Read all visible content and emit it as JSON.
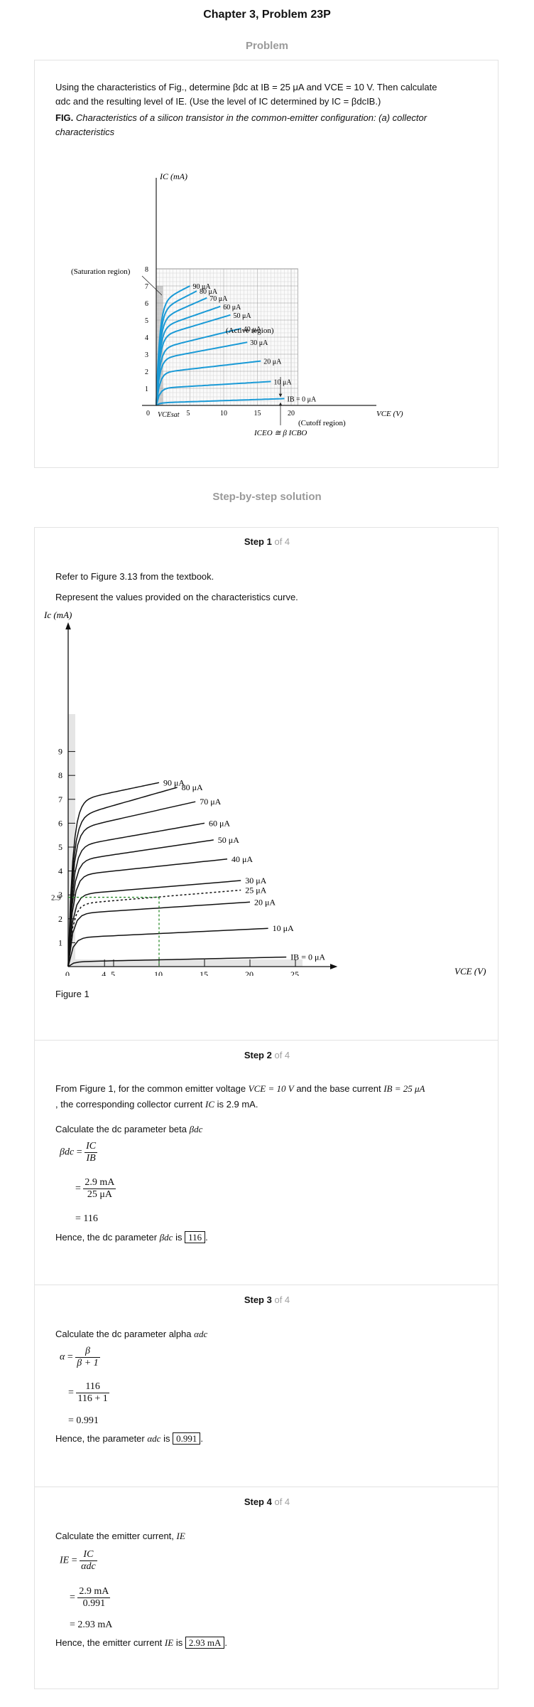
{
  "page": {
    "title": "Chapter 3, Problem 23P",
    "problem_label": "Problem",
    "solution_label": "Step-by-step solution"
  },
  "problem": {
    "text_line1": "Using the characteristics of Fig., determine βdc at IB = 25 μA and VCE = 10 V. Then calculate",
    "text_line2": "αdc and the resulting level of IE. (Use the level of IC determined by IC = βdcIB.)",
    "fig_label": "FIG.",
    "fig_caption_line1": "Characteristics of a silicon transistor in the common-emitter configuration: (a) collector",
    "fig_caption_line2": "characteristics"
  },
  "figure_a": {
    "y_axis_label": "IC (mA)",
    "x_axis_label": "VCE (V)",
    "y_ticks": [
      "1",
      "2",
      "3",
      "4",
      "5",
      "6",
      "7",
      "8"
    ],
    "x_ticks": [
      "0",
      "5",
      "10",
      "15",
      "20"
    ],
    "curve_labels": [
      "90 μA",
      "80 μA",
      "70 μA",
      "60 μA",
      "50 μA",
      "40 μA",
      "30 μA",
      "20 μA",
      "10 μA",
      "IB = 0 μA"
    ],
    "annotations": {
      "saturation": "(Saturation region)",
      "active": "(Active region)",
      "cutoff": "(Cutoff region)",
      "vce_sat": "VCEsat",
      "iceo": "ICEO ≅ β ICBO"
    },
    "curve_color": "#1a9ad6"
  },
  "steps": [
    {
      "label": "Step 1",
      "of": "of 4",
      "line1": "Refer to Figure 3.13 from the textbook.",
      "line2": "Represent the values provided on the characteristics curve.",
      "figure_caption": "Figure 1"
    },
    {
      "label": "Step 2",
      "of": "of 4",
      "text_a": "From Figure 1, for the common emitter voltage",
      "vce_eq": "VCE = 10 V",
      "text_b": "and the base current",
      "ib_eq": "IB = 25 μA",
      "text_c": ", the corresponding collector current",
      "ic_sym": "IC",
      "text_d": "is 2.9 mA.",
      "calc_text": "Calculate the dc parameter beta",
      "beta_sym": "βdc",
      "eq_num": "IC",
      "eq_den": "IB",
      "val_num": "2.9 mA",
      "val_den": "25 μA",
      "result": "= 116",
      "hence": "Hence, the dc parameter",
      "answer": "116"
    },
    {
      "label": "Step 3",
      "of": "of 4",
      "calc_text": "Calculate the dc parameter alpha",
      "alpha_sym": "αdc",
      "eq_num": "β",
      "eq_den": "β + 1",
      "val_num": "116",
      "val_den": "116 + 1",
      "result": "= 0.991",
      "hence": "Hence, the parameter",
      "answer": "0.991"
    },
    {
      "label": "Step 4",
      "of": "of 4",
      "calc_text": "Calculate the emitter current,",
      "ie_sym": "IE",
      "eq_num": "IC",
      "eq_den": "αdc",
      "val_num": "2.9 mA",
      "val_den": "0.991",
      "result": "= 2.93 mA",
      "hence": "Hence, the emitter current",
      "answer": "2.93 mA"
    }
  ],
  "chart_data": {
    "type": "line",
    "title": "",
    "xlabel": "VCE (V)",
    "ylabel": "Ic (mA)",
    "xlim": [
      0,
      28
    ],
    "ylim": [
      0,
      10
    ],
    "x_ticks": [
      "0",
      "4",
      "5",
      "10",
      "15",
      "20",
      "25"
    ],
    "y_ticks": [
      "1",
      "2",
      "3",
      "4",
      "5",
      "6",
      "7",
      "8",
      "9"
    ],
    "y_marker_label": "2.9",
    "marker_point": {
      "x": 10,
      "y": 2.9
    },
    "series": [
      {
        "name": "90 μA",
        "end_x": 10,
        "values_at_knee": 6.9,
        "values_at_end": 7.7
      },
      {
        "name": "80 μA",
        "end_x": 12,
        "values_at_knee": 6.2,
        "values_at_end": 7.5
      },
      {
        "name": "70 μA",
        "end_x": 14,
        "values_at_knee": 5.7,
        "values_at_end": 6.9
      },
      {
        "name": "60 μA",
        "end_x": 15,
        "values_at_knee": 5.0,
        "values_at_end": 6.0
      },
      {
        "name": "50 μA",
        "end_x": 16,
        "values_at_knee": 4.4,
        "values_at_end": 5.3
      },
      {
        "name": "40 μA",
        "end_x": 17.5,
        "values_at_knee": 3.8,
        "values_at_end": 4.5
      },
      {
        "name": "30 μA",
        "end_x": 19,
        "values_at_knee": 3.0,
        "values_at_end": 3.6
      },
      {
        "name": "25 μA",
        "end_x": 19,
        "values_at_knee": 2.6,
        "values_at_end": 3.2,
        "dashed": true
      },
      {
        "name": "20 μA",
        "end_x": 20,
        "values_at_knee": 2.2,
        "values_at_end": 2.7
      },
      {
        "name": "10 μA",
        "end_x": 22,
        "values_at_knee": 1.2,
        "values_at_end": 1.6
      },
      {
        "name": "IB = 0 μA",
        "end_x": 24,
        "values_at_knee": 0.2,
        "values_at_end": 0.4
      }
    ]
  }
}
